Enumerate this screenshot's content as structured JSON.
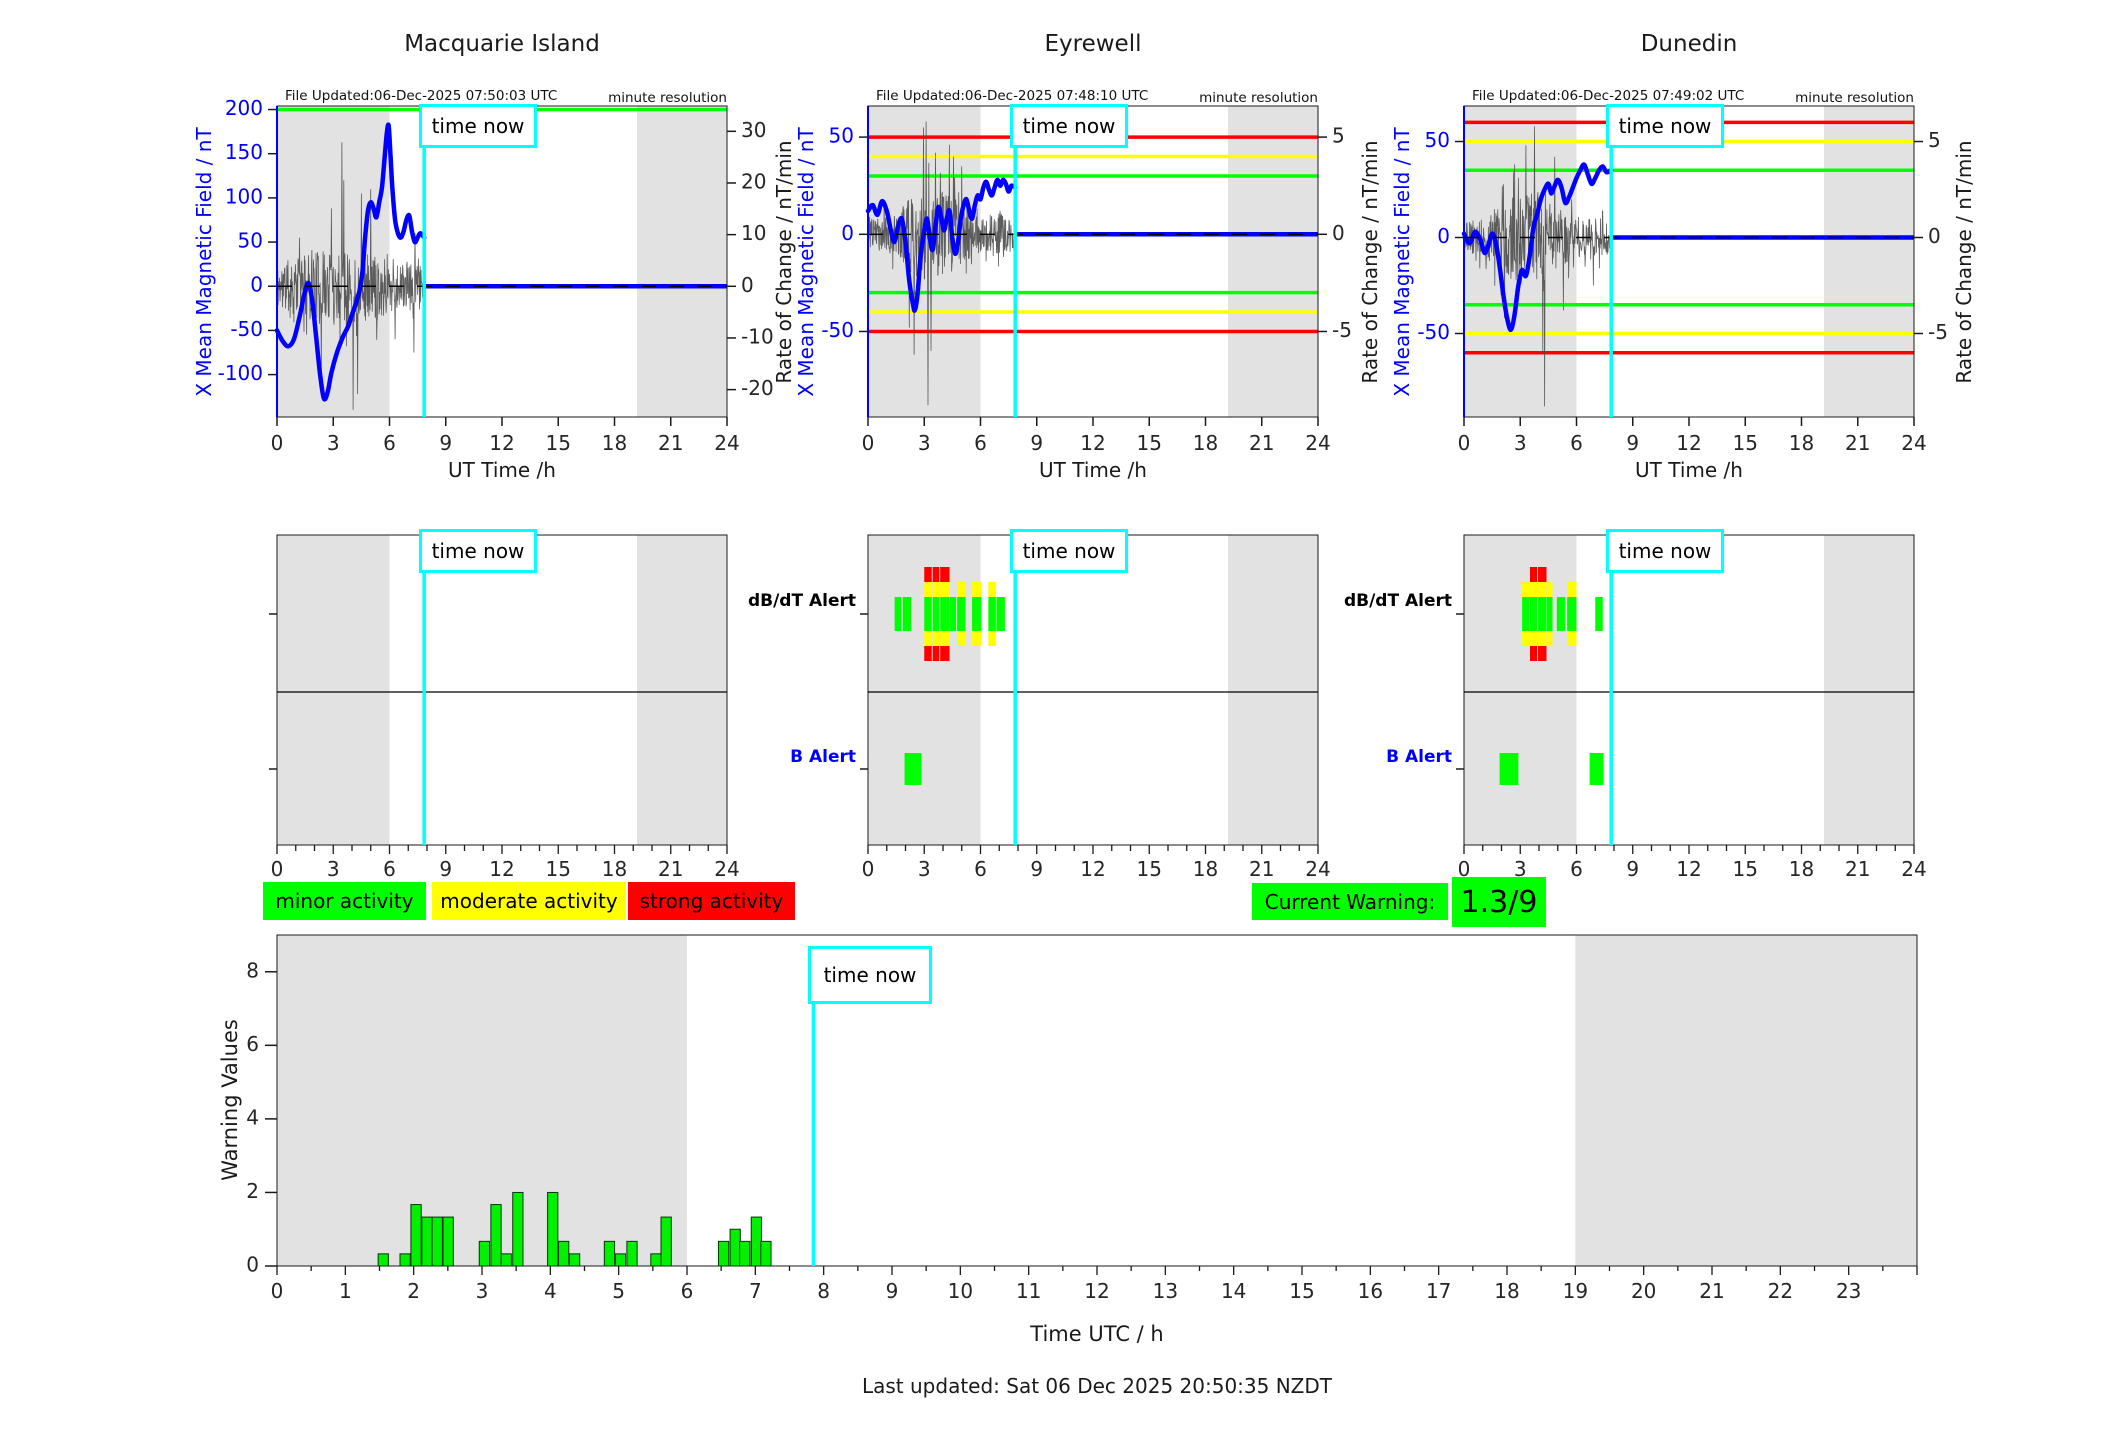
{
  "labels": {
    "time_now": "time now",
    "dbdt_alert": "dB/dT Alert",
    "b_alert": "B Alert",
    "footer": "Last updated: Sat 06 Dec 2025 20:50:35 NZDT"
  },
  "legend": {
    "minor": "minor activity",
    "moderate": "moderate activity",
    "strong": "strong activity",
    "current_warning_label": "Current Warning:",
    "current_warning_value": "1.3/9",
    "colors": {
      "minor": "#00ff00",
      "moderate": "#ffff00",
      "strong": "#ff0000"
    }
  },
  "colors": {
    "curve": "#0000ff",
    "noise": "#4d4d4d",
    "shade": "#e2e2e2",
    "time_now_line": "#00ffff",
    "axis": "#1a1a1a",
    "left_axis": "#0000ff",
    "warning_bar": "#00f000"
  },
  "chart_data": [
    {
      "type": "line",
      "station": "macquarie",
      "title": "Macquarie Island",
      "file_updated": "File Updated:06-Dec-2025 07:50:03 UTC",
      "resolution": "minute resolution",
      "xlabel": "UT Time /h",
      "ylabel_left": "X Mean Magnetic Field / nT",
      "ylabel_right": "Rate of Change / nT/min",
      "xlim": [
        0,
        24
      ],
      "xticks": [
        0,
        3,
        6,
        9,
        12,
        15,
        18,
        21,
        24
      ],
      "ylim_left": [
        -148,
        204
      ],
      "yticks_left": [
        200,
        150,
        100,
        50,
        0,
        -50,
        -100
      ],
      "ylim_right": [
        -25.3,
        34.9
      ],
      "yticks_right": [
        30,
        20,
        10,
        0,
        -10,
        -20
      ],
      "thresholds": [
        {
          "value": 200,
          "color": "#00ff00"
        }
      ],
      "time_now": 7.85,
      "shaded_hours": [
        [
          0,
          6
        ],
        [
          19.2,
          24
        ]
      ],
      "mean_field_t": [
        0,
        0.3,
        0.6,
        0.9,
        1.2,
        1.5,
        1.7,
        1.9,
        2.1,
        2.3,
        2.5,
        2.7,
        2.9,
        3.2,
        3.5,
        3.8,
        4.0,
        4.2,
        4.4,
        4.55,
        4.7,
        4.85,
        5.0,
        5.15,
        5.3,
        5.45,
        5.6,
        5.75,
        5.85,
        5.95,
        6.05,
        6.15,
        6.3,
        6.45,
        6.6,
        6.75,
        6.9,
        7.05,
        7.2,
        7.35,
        7.5,
        7.65,
        7.85
      ],
      "mean_field_nT": [
        -50,
        -62,
        -68,
        -60,
        -35,
        -5,
        3,
        -20,
        -60,
        -100,
        -127,
        -120,
        -98,
        -75,
        -58,
        -45,
        -32,
        -20,
        -5,
        15,
        55,
        85,
        95,
        88,
        78,
        95,
        112,
        148,
        172,
        182,
        150,
        112,
        75,
        60,
        55,
        62,
        75,
        80,
        62,
        50,
        55,
        60,
        55
      ],
      "noise_seed": 11,
      "noise_envelope_t": [
        0,
        0.5,
        1.5,
        2,
        2.5,
        3,
        3.5,
        4,
        4.5,
        5,
        5.5,
        6,
        6.5,
        7,
        7.85
      ],
      "noise_envelope_nT": [
        25,
        30,
        35,
        40,
        40,
        45,
        45,
        42,
        40,
        38,
        35,
        30,
        25,
        28,
        22
      ],
      "noise_spikes": [
        [
          1.2,
          55
        ],
        [
          2.35,
          -95
        ],
        [
          2.9,
          88
        ],
        [
          3.45,
          163
        ],
        [
          3.55,
          120
        ],
        [
          4.05,
          -140
        ],
        [
          4.3,
          -122
        ],
        [
          4.5,
          105
        ],
        [
          5.0,
          110
        ],
        [
          6.3,
          -60
        ],
        [
          7.3,
          -75
        ],
        [
          7.35,
          60
        ]
      ]
    },
    {
      "type": "line",
      "station": "eyrewell",
      "title": "Eyrewell",
      "file_updated": "File Updated:06-Dec-2025 07:48:10 UTC",
      "resolution": "minute resolution",
      "xlabel": "UT Time /h",
      "ylabel_left": "X Mean Magnetic Field / nT",
      "ylabel_right": "Rate of Change / nT/min",
      "xlim": [
        0,
        24
      ],
      "xticks": [
        0,
        3,
        6,
        9,
        12,
        15,
        18,
        21,
        24
      ],
      "ylim_left": [
        -94,
        66
      ],
      "yticks_left": [
        50,
        0,
        -50
      ],
      "ylim_right": [
        -9.4,
        6.6
      ],
      "yticks_right": [
        5,
        0,
        -5
      ],
      "thresholds": [
        {
          "value": 50,
          "color": "#ff0000"
        },
        {
          "value": -50,
          "color": "#ff0000"
        },
        {
          "value": 40,
          "color": "#ffff00"
        },
        {
          "value": -40,
          "color": "#ffff00"
        },
        {
          "value": 30,
          "color": "#00ff00"
        },
        {
          "value": -30,
          "color": "#00ff00"
        }
      ],
      "time_now": 7.85,
      "shaded_hours": [
        [
          0,
          6
        ],
        [
          19.2,
          24
        ]
      ],
      "mean_field_t": [
        0,
        0.25,
        0.5,
        0.75,
        1.0,
        1.2,
        1.4,
        1.6,
        1.8,
        2.0,
        2.2,
        2.4,
        2.5,
        2.65,
        2.8,
        3.0,
        3.15,
        3.3,
        3.45,
        3.6,
        3.75,
        3.9,
        4.05,
        4.2,
        4.35,
        4.5,
        4.65,
        4.8,
        4.95,
        5.1,
        5.25,
        5.4,
        5.55,
        5.7,
        5.85,
        6.0,
        6.15,
        6.3,
        6.45,
        6.6,
        6.75,
        6.9,
        7.05,
        7.2,
        7.35,
        7.5,
        7.65,
        7.85
      ],
      "mean_field_nT": [
        12,
        15,
        10,
        17,
        12,
        3,
        -4,
        4,
        8,
        -4,
        -24,
        -36,
        -39,
        -30,
        -12,
        2,
        8,
        -2,
        -8,
        4,
        14,
        9,
        2,
        8,
        12,
        -2,
        -10,
        -4,
        8,
        15,
        18,
        12,
        8,
        15,
        20,
        18,
        24,
        27,
        23,
        20,
        24,
        28,
        25,
        28,
        26,
        22,
        25,
        24
      ],
      "noise_seed": 23,
      "noise_envelope_t": [
        0,
        1,
        1.5,
        2,
        2.5,
        3,
        3.5,
        4,
        4.5,
        5,
        5.5,
        6,
        6.5,
        7,
        7.85
      ],
      "noise_envelope_nT": [
        8,
        9,
        12,
        18,
        22,
        25,
        24,
        22,
        20,
        15,
        12,
        10,
        9,
        11,
        10
      ],
      "noise_spikes": [
        [
          2.2,
          -48
        ],
        [
          2.45,
          -62
        ],
        [
          2.95,
          55
        ],
        [
          3.1,
          58
        ],
        [
          3.2,
          -88
        ],
        [
          3.35,
          -60
        ],
        [
          3.6,
          42
        ],
        [
          4.35,
          46
        ],
        [
          4.55,
          40
        ],
        [
          5.0,
          35
        ]
      ],
      "alert_labels_visible": true
    },
    {
      "type": "line",
      "station": "dunedin",
      "title": "Dunedin",
      "file_updated": "File Updated:06-Dec-2025 07:49:02 UTC",
      "resolution": "minute resolution",
      "xlabel": "UT Time /h",
      "ylabel_left": "X Mean Magnetic Field / nT",
      "ylabel_right": "Rate of Change / nT/min",
      "xlim": [
        0,
        24
      ],
      "xticks": [
        0,
        3,
        6,
        9,
        12,
        15,
        18,
        21,
        24
      ],
      "ylim_left": [
        -93.5,
        68.5
      ],
      "yticks_left": [
        50,
        0,
        -50
      ],
      "ylim_right": [
        -9.35,
        6.85
      ],
      "yticks_right": [
        5,
        0,
        -5
      ],
      "thresholds": [
        {
          "value": 60,
          "color": "#ff0000"
        },
        {
          "value": -60,
          "color": "#ff0000"
        },
        {
          "value": 50,
          "color": "#ffff00"
        },
        {
          "value": -50,
          "color": "#ffff00"
        },
        {
          "value": 35,
          "color": "#00ff00"
        },
        {
          "value": -35,
          "color": "#00ff00"
        }
      ],
      "time_now": 7.85,
      "shaded_hours": [
        [
          0,
          6
        ],
        [
          19.2,
          24
        ]
      ],
      "mean_field_t": [
        0,
        0.3,
        0.6,
        0.9,
        1.1,
        1.3,
        1.5,
        1.7,
        1.9,
        2.1,
        2.3,
        2.5,
        2.7,
        2.9,
        3.1,
        3.3,
        3.5,
        3.7,
        3.9,
        4.1,
        4.3,
        4.5,
        4.65,
        4.8,
        5.0,
        5.2,
        5.4,
        5.6,
        5.8,
        6.0,
        6.2,
        6.4,
        6.6,
        6.8,
        7.0,
        7.2,
        7.4,
        7.6,
        7.85
      ],
      "mean_field_nT": [
        2,
        -3,
        3,
        -2,
        -8,
        -4,
        2,
        -3,
        -15,
        -30,
        -42,
        -48,
        -40,
        -25,
        -17,
        -20,
        -10,
        5,
        12,
        20,
        25,
        28,
        23,
        26,
        30,
        26,
        18,
        21,
        26,
        31,
        35,
        38,
        33,
        28,
        31,
        35,
        37,
        34,
        35
      ],
      "noise_seed": 37,
      "noise_envelope_t": [
        0,
        1,
        1.5,
        2,
        2.5,
        3,
        3.5,
        4,
        4.5,
        5,
        5.5,
        6,
        6.5,
        7,
        7.85
      ],
      "noise_envelope_nT": [
        8,
        10,
        14,
        18,
        22,
        24,
        24,
        22,
        20,
        16,
        13,
        11,
        10,
        10,
        9
      ],
      "noise_spikes": [
        [
          2.15,
          -42
        ],
        [
          3.3,
          48
        ],
        [
          3.75,
          58
        ],
        [
          4.2,
          -60
        ],
        [
          4.3,
          -88
        ],
        [
          4.85,
          42
        ],
        [
          5.3,
          -38
        ],
        [
          6.9,
          -25
        ]
      ],
      "alert_labels_visible": true
    },
    {
      "type": "alert-timeline",
      "station": "macquarie",
      "xlim": [
        0,
        24
      ],
      "xticks": [
        0,
        3,
        6,
        9,
        12,
        15,
        18,
        21,
        24
      ],
      "time_now": 7.85,
      "shaded_hours": [
        [
          0,
          6
        ],
        [
          19.2,
          24
        ]
      ],
      "dbdt_alerts": [],
      "b_alerts": []
    },
    {
      "type": "alert-timeline",
      "station": "eyrewell",
      "xlim": [
        0,
        24
      ],
      "xticks": [
        0,
        3,
        6,
        9,
        12,
        15,
        18,
        21,
        24
      ],
      "time_now": 7.85,
      "shaded_hours": [
        [
          0,
          6
        ],
        [
          19.2,
          24
        ]
      ],
      "dbdt_alerts": [
        {
          "start": 1.42,
          "width": 0.35,
          "severity": "minor"
        },
        {
          "start": 1.85,
          "width": 0.45,
          "severity": "minor"
        },
        {
          "start": 3.0,
          "width": 0.4,
          "severity": "strong"
        },
        {
          "start": 3.45,
          "width": 0.35,
          "severity": "strong"
        },
        {
          "start": 3.85,
          "width": 0.5,
          "severity": "strong"
        },
        {
          "start": 4.37,
          "width": 0.33,
          "severity": "minor"
        },
        {
          "start": 4.75,
          "width": 0.45,
          "severity": "moderate"
        },
        {
          "start": 5.55,
          "width": 0.5,
          "severity": "moderate"
        },
        {
          "start": 6.42,
          "width": 0.4,
          "severity": "moderate"
        },
        {
          "start": 6.85,
          "width": 0.45,
          "severity": "minor"
        }
      ],
      "b_alerts": [
        {
          "start": 1.95,
          "width": 0.9
        }
      ]
    },
    {
      "type": "alert-timeline",
      "station": "dunedin",
      "xlim": [
        0,
        24
      ],
      "xticks": [
        0,
        3,
        6,
        9,
        12,
        15,
        18,
        21,
        24
      ],
      "time_now": 7.85,
      "shaded_hours": [
        [
          0,
          6
        ],
        [
          19.2,
          24
        ]
      ],
      "dbdt_alerts": [
        {
          "start": 3.1,
          "width": 0.4,
          "severity": "moderate"
        },
        {
          "start": 3.52,
          "width": 0.38,
          "severity": "strong"
        },
        {
          "start": 3.95,
          "width": 0.45,
          "severity": "strong"
        },
        {
          "start": 4.42,
          "width": 0.3,
          "severity": "moderate"
        },
        {
          "start": 4.95,
          "width": 0.45,
          "severity": "minor"
        },
        {
          "start": 5.5,
          "width": 0.5,
          "severity": "moderate"
        },
        {
          "start": 7.0,
          "width": 0.4,
          "severity": "minor"
        }
      ],
      "b_alerts": [
        {
          "start": 1.9,
          "width": 1.0
        },
        {
          "start": 6.7,
          "width": 0.75
        }
      ]
    },
    {
      "type": "bar",
      "station": "warning-values",
      "ylabel": "Warning Values",
      "xlabel": "Time UTC / h",
      "xlim": [
        0,
        24
      ],
      "xticks": [
        0,
        1,
        2,
        3,
        4,
        5,
        6,
        7,
        8,
        9,
        10,
        11,
        12,
        13,
        14,
        15,
        16,
        17,
        18,
        19,
        20,
        21,
        22,
        23
      ],
      "ylim": [
        0,
        9
      ],
      "yticks": [
        0,
        2,
        4,
        6,
        8
      ],
      "time_now": 7.85,
      "shaded_hours": [
        [
          0,
          6
        ],
        [
          19,
          24
        ]
      ],
      "bar_width_hours": 0.15,
      "bar_color": "#00f000",
      "bars": [
        [
          1.48,
          0.33
        ],
        [
          1.8,
          0.33
        ],
        [
          1.96,
          1.67
        ],
        [
          2.12,
          1.33
        ],
        [
          2.27,
          1.33
        ],
        [
          2.43,
          1.33
        ],
        [
          2.96,
          0.67
        ],
        [
          3.13,
          1.67
        ],
        [
          3.28,
          0.33
        ],
        [
          3.45,
          2.0
        ],
        [
          3.96,
          2.0
        ],
        [
          4.12,
          0.67
        ],
        [
          4.28,
          0.33
        ],
        [
          4.79,
          0.67
        ],
        [
          4.95,
          0.33
        ],
        [
          5.12,
          0.67
        ],
        [
          5.47,
          0.33
        ],
        [
          5.62,
          1.33
        ],
        [
          6.46,
          0.67
        ],
        [
          6.63,
          1.0
        ],
        [
          6.77,
          0.67
        ],
        [
          6.94,
          1.33
        ],
        [
          7.08,
          0.67
        ]
      ]
    }
  ]
}
